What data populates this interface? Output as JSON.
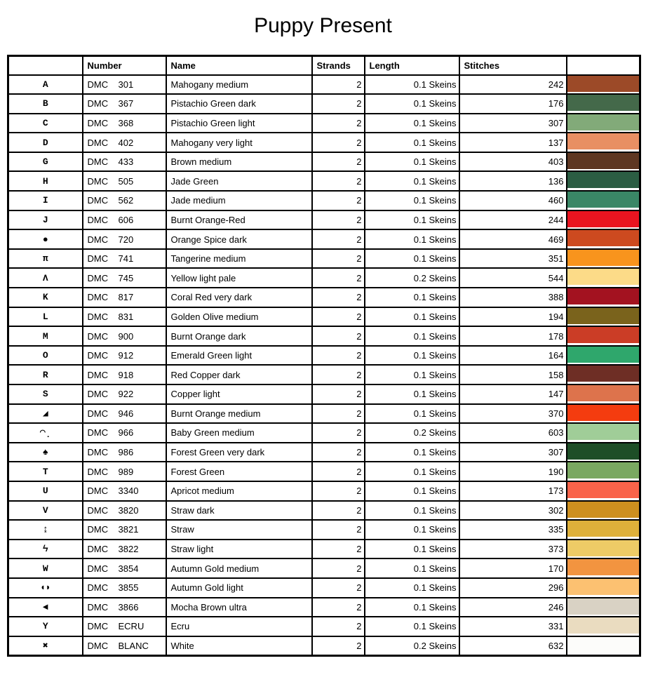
{
  "page": {
    "title": "Puppy Present"
  },
  "table": {
    "headers": {
      "symbol": "",
      "number": "Number",
      "name": "Name",
      "strands": "Strands",
      "length": "Length",
      "stitches": "Stitches",
      "color": ""
    },
    "rows": [
      {
        "symbol": "A",
        "brand": "DMC",
        "code": "301",
        "name": "Mahogany medium",
        "strands": "2",
        "length": "0.1 Skeins",
        "stitches": "242",
        "color": "#9c4a28"
      },
      {
        "symbol": "B",
        "brand": "DMC",
        "code": "367",
        "name": "Pistachio Green dark",
        "strands": "2",
        "length": "0.1 Skeins",
        "stitches": "176",
        "color": "#44694a"
      },
      {
        "symbol": "C",
        "brand": "DMC",
        "code": "368",
        "name": "Pistachio Green light",
        "strands": "2",
        "length": "0.1 Skeins",
        "stitches": "307",
        "color": "#82aa79"
      },
      {
        "symbol": "D",
        "brand": "DMC",
        "code": "402",
        "name": "Mahogany very light",
        "strands": "2",
        "length": "0.1 Skeins",
        "stitches": "137",
        "color": "#e88f63"
      },
      {
        "symbol": "G",
        "brand": "DMC",
        "code": "433",
        "name": "Brown medium",
        "strands": "2",
        "length": "0.1 Skeins",
        "stitches": "403",
        "color": "#5e3722"
      },
      {
        "symbol": "H",
        "brand": "DMC",
        "code": "505",
        "name": "Jade Green",
        "strands": "2",
        "length": "0.1 Skeins",
        "stitches": "136",
        "color": "#2b5d43"
      },
      {
        "symbol": "I",
        "brand": "DMC",
        "code": "562",
        "name": "Jade medium",
        "strands": "2",
        "length": "0.1 Skeins",
        "stitches": "460",
        "color": "#3a8766"
      },
      {
        "symbol": "J",
        "brand": "DMC",
        "code": "606",
        "name": "Burnt Orange-Red",
        "strands": "2",
        "length": "0.1 Skeins",
        "stitches": "244",
        "color": "#e91420"
      },
      {
        "symbol": "●",
        "brand": "DMC",
        "code": "720",
        "name": "Orange Spice dark",
        "strands": "2",
        "length": "0.1 Skeins",
        "stitches": "469",
        "color": "#cd4a1f"
      },
      {
        "symbol": "π",
        "brand": "DMC",
        "code": "741",
        "name": "Tangerine medium",
        "strands": "2",
        "length": "0.1 Skeins",
        "stitches": "351",
        "color": "#f8941d"
      },
      {
        "symbol": "Λ",
        "brand": "DMC",
        "code": "745",
        "name": "Yellow light pale",
        "strands": "2",
        "length": "0.2 Skeins",
        "stitches": "544",
        "color": "#fcdb88"
      },
      {
        "symbol": "K",
        "brand": "DMC",
        "code": "817",
        "name": "Coral Red very dark",
        "strands": "2",
        "length": "0.1 Skeins",
        "stitches": "388",
        "color": "#a31220"
      },
      {
        "symbol": "L",
        "brand": "DMC",
        "code": "831",
        "name": "Golden Olive medium",
        "strands": "2",
        "length": "0.1 Skeins",
        "stitches": "194",
        "color": "#7a631c"
      },
      {
        "symbol": "M",
        "brand": "DMC",
        "code": "900",
        "name": "Burnt Orange dark",
        "strands": "2",
        "length": "0.1 Skeins",
        "stitches": "178",
        "color": "#cb3d26"
      },
      {
        "symbol": "O",
        "brand": "DMC",
        "code": "912",
        "name": "Emerald Green light",
        "strands": "2",
        "length": "0.1 Skeins",
        "stitches": "164",
        "color": "#2fa76c"
      },
      {
        "symbol": "R",
        "brand": "DMC",
        "code": "918",
        "name": "Red Copper dark",
        "strands": "2",
        "length": "0.1 Skeins",
        "stitches": "158",
        "color": "#6e2e25"
      },
      {
        "symbol": "S",
        "brand": "DMC",
        "code": "922",
        "name": "Copper light",
        "strands": "2",
        "length": "0.1 Skeins",
        "stitches": "147",
        "color": "#dd734c"
      },
      {
        "symbol": "◢",
        "brand": "DMC",
        "code": "946",
        "name": "Burnt Orange medium",
        "strands": "2",
        "length": "0.1 Skeins",
        "stitches": "370",
        "color": "#f43c0f"
      },
      {
        "symbol": "◠̣",
        "brand": "DMC",
        "code": "966",
        "name": "Baby Green medium",
        "strands": "2",
        "length": "0.2 Skeins",
        "stitches": "603",
        "color": "#a0cd98"
      },
      {
        "symbol": "♠",
        "brand": "DMC",
        "code": "986",
        "name": "Forest Green very dark",
        "strands": "2",
        "length": "0.1 Skeins",
        "stitches": "307",
        "color": "#1e4e27"
      },
      {
        "symbol": "T",
        "brand": "DMC",
        "code": "989",
        "name": "Forest Green",
        "strands": "2",
        "length": "0.1 Skeins",
        "stitches": "190",
        "color": "#7aa861"
      },
      {
        "symbol": "U",
        "brand": "DMC",
        "code": "3340",
        "name": "Apricot medium",
        "strands": "2",
        "length": "0.1 Skeins",
        "stitches": "173",
        "color": "#f9634a"
      },
      {
        "symbol": "V",
        "brand": "DMC",
        "code": "3820",
        "name": "Straw dark",
        "strands": "2",
        "length": "0.1 Skeins",
        "stitches": "302",
        "color": "#cd8f1f"
      },
      {
        "symbol": "↨",
        "brand": "DMC",
        "code": "3821",
        "name": "Straw",
        "strands": "2",
        "length": "0.1 Skeins",
        "stitches": "335",
        "color": "#deb03a"
      },
      {
        "symbol": "ϟ",
        "brand": "DMC",
        "code": "3822",
        "name": "Straw light",
        "strands": "2",
        "length": "0.1 Skeins",
        "stitches": "373",
        "color": "#eecb66"
      },
      {
        "symbol": "W",
        "brand": "DMC",
        "code": "3854",
        "name": "Autumn Gold medium",
        "strands": "2",
        "length": "0.1 Skeins",
        "stitches": "170",
        "color": "#f29440"
      },
      {
        "symbol": "◖◗",
        "brand": "DMC",
        "code": "3855",
        "name": "Autumn Gold light",
        "strands": "2",
        "length": "0.1 Skeins",
        "stitches": "296",
        "color": "#fcc171"
      },
      {
        "symbol": "◄",
        "brand": "DMC",
        "code": "3866",
        "name": "Mocha Brown ultra",
        "strands": "2",
        "length": "0.1 Skeins",
        "stitches": "246",
        "color": "#d9d2c4"
      },
      {
        "symbol": "Y",
        "brand": "DMC",
        "code": "ECRU",
        "name": "Ecru",
        "strands": "2",
        "length": "0.1 Skeins",
        "stitches": "331",
        "color": "#eadcc0"
      },
      {
        "symbol": "✖",
        "brand": "DMC",
        "code": "BLANC",
        "name": "White",
        "strands": "2",
        "length": "0.2 Skeins",
        "stitches": "632",
        "color": "#fcfcfa"
      }
    ]
  }
}
